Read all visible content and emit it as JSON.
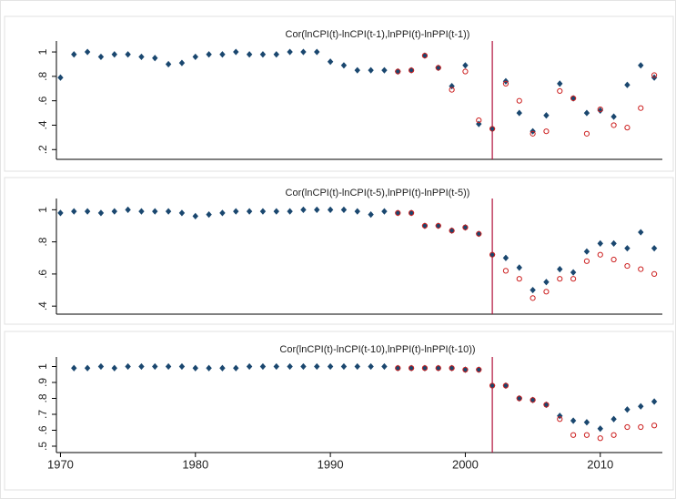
{
  "chart_data": [
    {
      "type": "scatter",
      "title": "Cor(lnCPI(t)-lnCPI(t-1),lnPPI(t)-lnPPI(t-1))",
      "x": [
        1970,
        1971,
        1972,
        1973,
        1974,
        1975,
        1976,
        1977,
        1978,
        1979,
        1980,
        1981,
        1982,
        1983,
        1984,
        1985,
        1986,
        1987,
        1988,
        1989,
        1990,
        1991,
        1992,
        1993,
        1994,
        1995,
        1996,
        1997,
        1998,
        1999,
        2000,
        2001,
        2002,
        2003,
        2004,
        2005,
        2006,
        2007,
        2008,
        2009,
        2010,
        2011,
        2012,
        2013,
        2014
      ],
      "series": [
        {
          "color": "#1a476f",
          "marker": "diamond",
          "values": [
            0.79,
            0.98,
            1.0,
            0.96,
            0.98,
            0.98,
            0.96,
            0.95,
            0.9,
            0.91,
            0.96,
            0.98,
            0.98,
            1.0,
            0.98,
            0.98,
            0.98,
            1.0,
            1.0,
            1.0,
            0.92,
            0.89,
            0.85,
            0.85,
            0.85,
            0.84,
            0.85,
            0.97,
            0.87,
            0.72,
            0.89,
            0.41,
            0.37,
            0.76,
            0.5,
            0.35,
            0.48,
            0.74,
            0.62,
            0.5,
            0.52,
            0.47,
            0.73,
            0.89,
            0.79
          ]
        },
        {
          "color": "#cc1f1f",
          "marker": "hollow-circle",
          "values": [
            null,
            null,
            null,
            null,
            null,
            null,
            null,
            null,
            null,
            null,
            null,
            null,
            null,
            null,
            null,
            null,
            null,
            null,
            null,
            null,
            null,
            null,
            null,
            null,
            null,
            0.84,
            0.85,
            0.97,
            0.87,
            0.69,
            0.84,
            0.44,
            0.37,
            0.74,
            0.6,
            0.33,
            0.35,
            0.68,
            0.62,
            0.33,
            0.53,
            0.4,
            0.38,
            0.54,
            0.81
          ]
        }
      ],
      "vline": 2002,
      "vline_color": "#b0103a",
      "xlim": [
        1969.7,
        2014.6
      ],
      "ylim": [
        0.12,
        1.09
      ],
      "yticks": [
        {
          "value": 0.2,
          "label": ".2"
        },
        {
          "value": 0.4,
          "label": ".4"
        },
        {
          "value": 0.6,
          "label": ".6"
        },
        {
          "value": 0.8,
          "label": ".8"
        },
        1
      ]
    },
    {
      "type": "scatter",
      "title": "Cor(lnCPI(t)-lnCPI(t-5),lnPPI(t)-lnPPI(t-5))",
      "x": [
        1970,
        1971,
        1972,
        1973,
        1974,
        1975,
        1976,
        1977,
        1978,
        1979,
        1980,
        1981,
        1982,
        1983,
        1984,
        1985,
        1986,
        1987,
        1988,
        1989,
        1990,
        1991,
        1992,
        1993,
        1994,
        1995,
        1996,
        1997,
        1998,
        1999,
        2000,
        2001,
        2002,
        2003,
        2004,
        2005,
        2006,
        2007,
        2008,
        2009,
        2010,
        2011,
        2012,
        2013,
        2014
      ],
      "series": [
        {
          "color": "#1a476f",
          "marker": "diamond",
          "values": [
            0.98,
            0.99,
            0.99,
            0.98,
            0.99,
            1.0,
            0.99,
            0.99,
            0.99,
            0.98,
            0.96,
            0.97,
            0.98,
            0.99,
            0.99,
            0.99,
            0.99,
            0.99,
            1.0,
            1.0,
            1.0,
            1.0,
            0.99,
            0.97,
            0.99,
            0.98,
            0.98,
            0.9,
            0.9,
            0.87,
            0.89,
            0.85,
            0.72,
            0.7,
            0.64,
            0.5,
            0.55,
            0.63,
            0.61,
            0.74,
            0.79,
            0.79,
            0.76,
            0.86,
            0.76
          ]
        },
        {
          "color": "#cc1f1f",
          "marker": "hollow-circle",
          "values": [
            null,
            null,
            null,
            null,
            null,
            null,
            null,
            null,
            null,
            null,
            null,
            null,
            null,
            null,
            null,
            null,
            null,
            null,
            null,
            null,
            null,
            null,
            null,
            null,
            null,
            0.98,
            0.98,
            0.9,
            0.9,
            0.87,
            0.89,
            0.85,
            0.72,
            0.62,
            0.57,
            0.45,
            0.49,
            0.57,
            0.57,
            0.68,
            0.72,
            0.69,
            0.65,
            0.63,
            0.6
          ]
        }
      ],
      "vline": 2002,
      "vline_color": "#b0103a",
      "xlim": [
        1969.7,
        2014.6
      ],
      "ylim": [
        0.35,
        1.07
      ],
      "yticks": [
        {
          "value": 0.4,
          "label": ".4"
        },
        {
          "value": 0.6,
          "label": ".6"
        },
        {
          "value": 0.8,
          "label": ".8"
        },
        1
      ]
    },
    {
      "type": "scatter",
      "title": "Cor(lnCPI(t)-lnCPI(t-10),lnPPI(t)-lnPPI(t-10))",
      "x": [
        1970,
        1971,
        1972,
        1973,
        1974,
        1975,
        1976,
        1977,
        1978,
        1979,
        1980,
        1981,
        1982,
        1983,
        1984,
        1985,
        1986,
        1987,
        1988,
        1989,
        1990,
        1991,
        1992,
        1993,
        1994,
        1995,
        1996,
        1997,
        1998,
        1999,
        2000,
        2001,
        2002,
        2003,
        2004,
        2005,
        2006,
        2007,
        2008,
        2009,
        2010,
        2011,
        2012,
        2013,
        2014
      ],
      "series": [
        {
          "color": "#1a476f",
          "marker": "diamond",
          "values": [
            null,
            0.99,
            0.99,
            1.0,
            0.99,
            1.0,
            1.0,
            1.0,
            1.0,
            1.0,
            0.99,
            0.99,
            0.99,
            0.99,
            1.0,
            1.0,
            1.0,
            1.0,
            1.0,
            1.0,
            1.0,
            1.0,
            1.0,
            1.0,
            1.0,
            0.99,
            0.99,
            0.99,
            0.99,
            0.99,
            0.98,
            0.98,
            0.88,
            0.88,
            0.8,
            0.79,
            0.76,
            0.69,
            0.66,
            0.65,
            0.61,
            0.67,
            0.73,
            0.75,
            0.78
          ]
        },
        {
          "color": "#cc1f1f",
          "marker": "hollow-circle",
          "values": [
            null,
            null,
            null,
            null,
            null,
            null,
            null,
            null,
            null,
            null,
            null,
            null,
            null,
            null,
            null,
            null,
            null,
            null,
            null,
            null,
            null,
            null,
            null,
            null,
            null,
            0.99,
            0.99,
            0.99,
            0.99,
            0.99,
            0.98,
            0.98,
            0.88,
            0.88,
            0.8,
            0.79,
            0.76,
            0.67,
            0.57,
            0.57,
            0.55,
            0.57,
            0.62,
            0.62,
            0.63
          ]
        }
      ],
      "vline": 2002,
      "vline_color": "#b0103a",
      "xlim": [
        1969.7,
        2014.6
      ],
      "xticks": [
        1970,
        1980,
        1990,
        2000,
        2010
      ],
      "ylim": [
        0.46,
        1.06
      ],
      "yticks": [
        {
          "value": 0.5,
          "label": ".5"
        },
        {
          "value": 0.6,
          "label": ".6"
        },
        {
          "value": 0.7,
          "label": ".7"
        },
        {
          "value": 0.8,
          "label": ".8"
        },
        {
          "value": 0.9,
          "label": ".9"
        },
        1
      ]
    }
  ]
}
